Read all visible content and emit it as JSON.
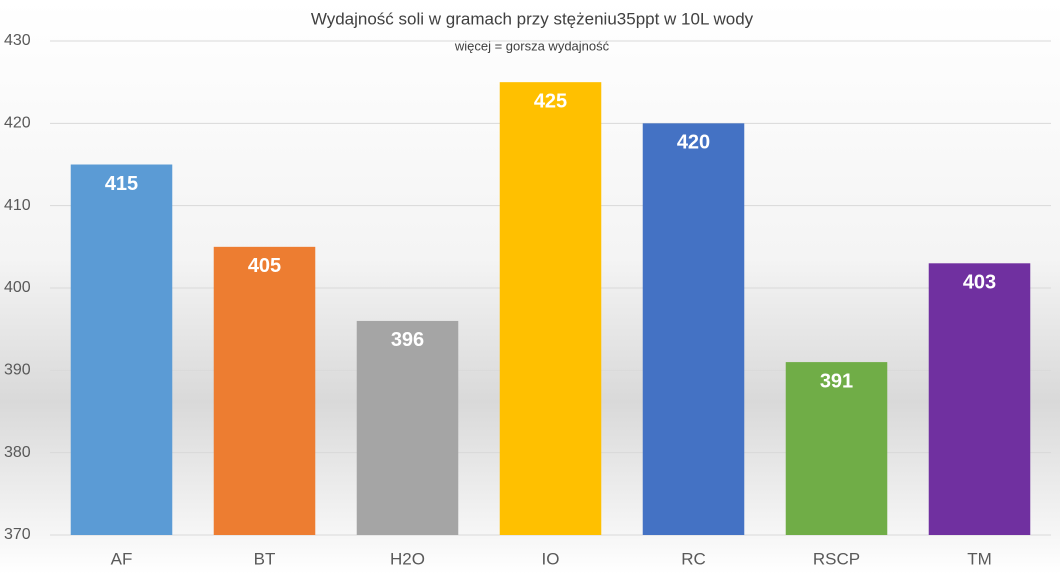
{
  "chart_data": {
    "type": "bar",
    "title": "Wydajność soli w gramach przy stężeniu35ppt w 10L wody",
    "subtitle": "więcej = gorsza wydajność",
    "categories": [
      "AF",
      "BT",
      "H2O",
      "IO",
      "RC",
      "RSCP",
      "TM"
    ],
    "values": [
      415,
      405,
      396,
      425,
      420,
      391,
      403
    ],
    "colors": [
      "#5b9bd5",
      "#ed7d31",
      "#a5a5a5",
      "#ffc000",
      "#4472c4",
      "#70ad47",
      "#7030a0"
    ],
    "ylim": [
      370,
      430
    ],
    "yticks": [
      370,
      380,
      390,
      400,
      410,
      420,
      430
    ],
    "grid": true
  }
}
